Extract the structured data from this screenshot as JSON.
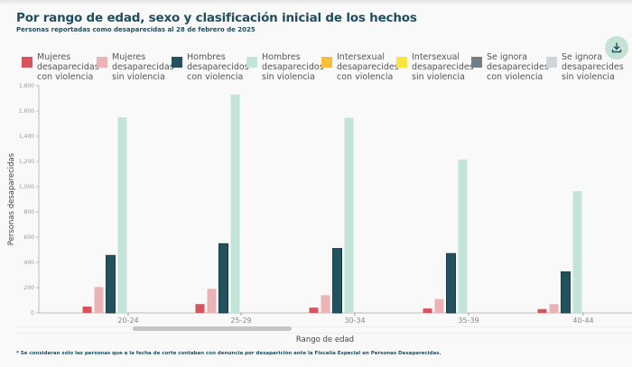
{
  "header": {
    "title": "Por rango de edad, sexo y clasificación inicial de los hechos",
    "subtitle": "Personas reportadas como desaparecidas al 28 de febrero de 2025"
  },
  "download_icon": "download-icon",
  "footnote": "* Se consideran sólo las personas que a la fecha de corte contaban con denuncia por desaparición ante la Fiscalía Especial en Personas Desaparecidas.",
  "chart_data": {
    "type": "bar",
    "title": "Por rango de edad, sexo y clasificación inicial de los hechos",
    "subtitle": "Personas reportadas como desaparecidas al 28 de febrero de 2025",
    "xlabel": "Rango de edad",
    "ylabel": "Personas desaparecidas",
    "ylim": [
      0,
      1800
    ],
    "yticks": [
      "0",
      "200",
      "400",
      "600",
      "800",
      "1,000",
      "1,200",
      "1,400",
      "1,600",
      "1,800"
    ],
    "yticks_values": [
      0,
      200,
      400,
      600,
      800,
      1000,
      1200,
      1400,
      1600,
      1800
    ],
    "grid": false,
    "legend_position": "top",
    "categories": [
      "20-24",
      "25-29",
      "30-34",
      "35-39",
      "40-44"
    ],
    "series": [
      {
        "name": "Mujeres desaparecidas con violencia",
        "label": "Mujeres\ndesaparecidas\ncon violencia",
        "color": "#d9535f",
        "values": [
          50,
          70,
          42,
          35,
          30
        ]
      },
      {
        "name": "Mujeres desaparecidas sin violencia",
        "label": "Mujeres\ndesaparecidas\nsin violencia",
        "color": "#ecb3b6",
        "values": [
          205,
          190,
          140,
          110,
          70
        ]
      },
      {
        "name": "Hombres desaparecidos con violencia",
        "label": "Hombres\ndesaparecidos\ncon violencia",
        "color": "#23525f",
        "values": [
          455,
          548,
          510,
          470,
          325
        ]
      },
      {
        "name": "Hombres desaparecidos sin violencia",
        "label": "Hombres\ndesaparecidos\nsin violencia",
        "color": "#c2e4d9",
        "values": [
          1550,
          1729,
          1545,
          1215,
          965
        ]
      },
      {
        "name": "Intersexual desaparecides con violencia",
        "label": "Intersexual\ndesaparecides\ncon violencia",
        "color": "#f7bf3a",
        "values": [
          0,
          0,
          0,
          0,
          0
        ]
      },
      {
        "name": "Intersexual desaparecides sin violencia",
        "label": "Intersexual\ndesaparecides\nsin violencia",
        "color": "#f7e53d",
        "values": [
          0,
          0,
          0,
          0,
          0
        ]
      },
      {
        "name": "Se ignora desaparecides con violencia",
        "label": "Se ignora\ndesaparecides\ncon violencia",
        "color": "#737f87",
        "values": [
          0,
          0,
          0,
          0,
          0
        ]
      },
      {
        "name": "Se ignora desaparecides sin violencia",
        "label": "Se ignora\ndesaparecides\nsin violencia",
        "color": "#cfd5d8",
        "values": [
          0,
          0,
          0,
          0,
          0
        ]
      }
    ]
  }
}
